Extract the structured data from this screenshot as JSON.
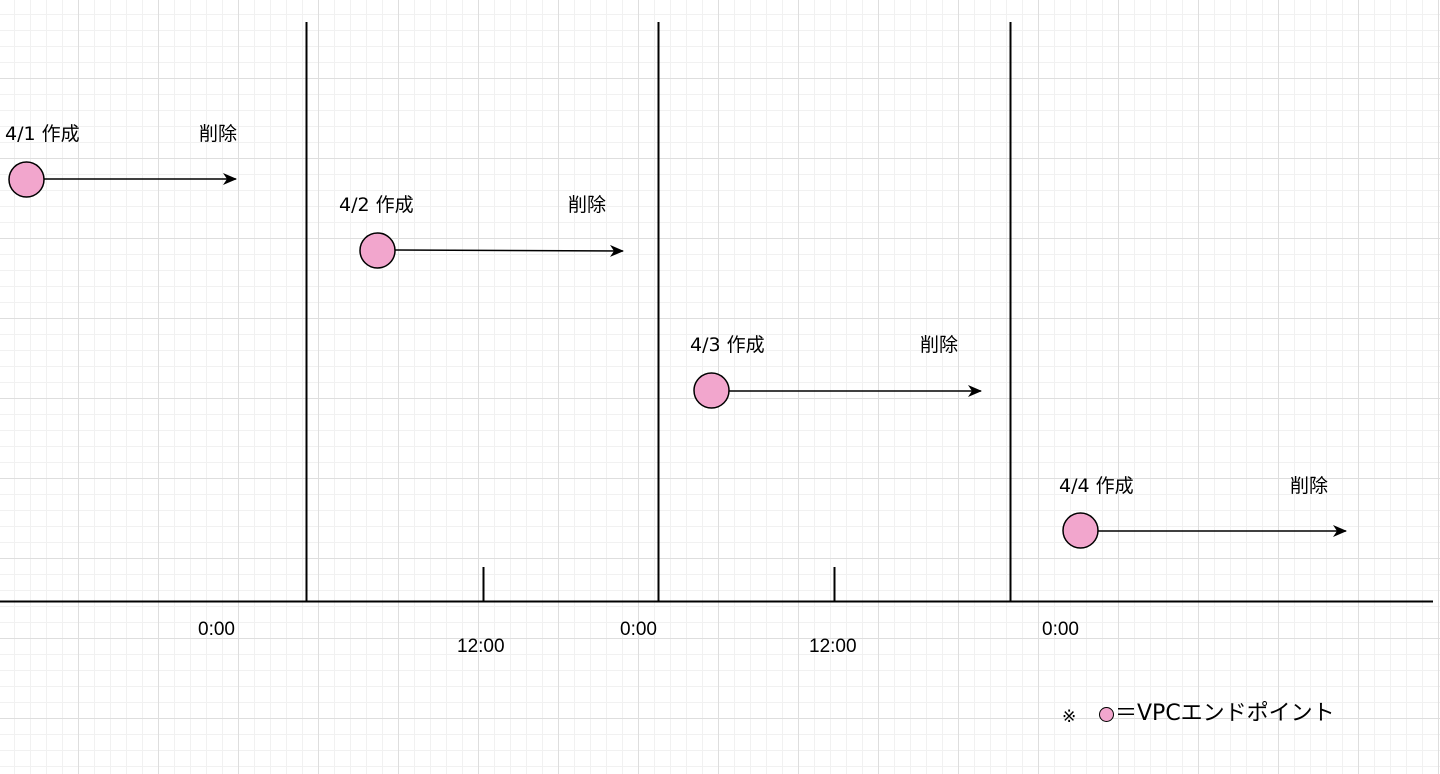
{
  "colors": {
    "endpoint_fill": "#f2a6cd",
    "line": "#000000"
  },
  "timeline": {
    "ticks": [
      {
        "label": "0:00",
        "kind": "day-boundary"
      },
      {
        "label": "12:00",
        "kind": "midday"
      },
      {
        "label": "0:00",
        "kind": "day-boundary"
      },
      {
        "label": "12:00",
        "kind": "midday"
      },
      {
        "label": "0:00",
        "kind": "day-boundary"
      }
    ]
  },
  "lifecycles": [
    {
      "created_label": "4/1 作成",
      "deleted_label": "削除",
      "icon": "endpoint-circle"
    },
    {
      "created_label": "4/2 作成",
      "deleted_label": "削除",
      "icon": "endpoint-circle"
    },
    {
      "created_label": "4/3 作成",
      "deleted_label": "削除",
      "icon": "endpoint-circle"
    },
    {
      "created_label": "4/4 作成",
      "deleted_label": "削除",
      "icon": "endpoint-circle"
    }
  ],
  "legend": {
    "mark": "※",
    "equals_text": "＝VPCエンドポイント"
  }
}
